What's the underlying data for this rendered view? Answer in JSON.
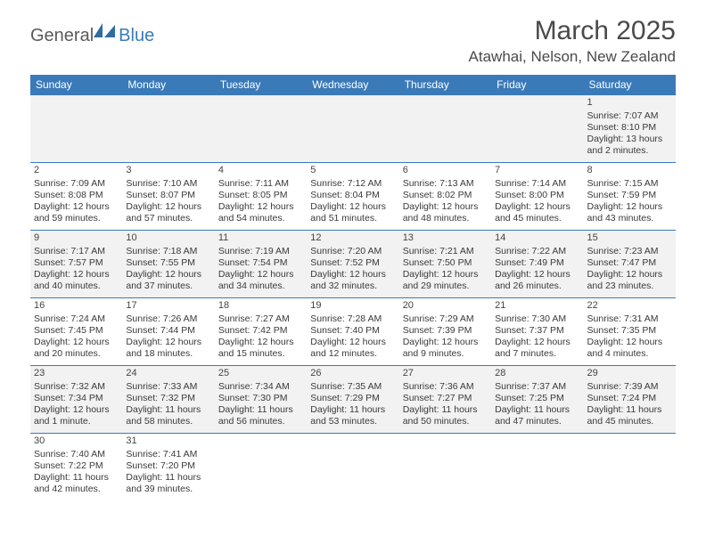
{
  "logo": {
    "part1": "General",
    "part2": "Blue"
  },
  "title": "March 2025",
  "location": "Atawhai, Nelson, New Zealand",
  "colors": {
    "header_bg": "#3a7ab8",
    "alt_row": "#f2f2f2",
    "text": "#3a3a3a",
    "title_text": "#4a4a4a"
  },
  "day_headers": [
    "Sunday",
    "Monday",
    "Tuesday",
    "Wednesday",
    "Thursday",
    "Friday",
    "Saturday"
  ],
  "weeks": [
    [
      null,
      null,
      null,
      null,
      null,
      null,
      {
        "n": "1",
        "sr": "Sunrise: 7:07 AM",
        "ss": "Sunset: 8:10 PM",
        "d1": "Daylight: 13 hours",
        "d2": "and 2 minutes."
      }
    ],
    [
      {
        "n": "2",
        "sr": "Sunrise: 7:09 AM",
        "ss": "Sunset: 8:08 PM",
        "d1": "Daylight: 12 hours",
        "d2": "and 59 minutes."
      },
      {
        "n": "3",
        "sr": "Sunrise: 7:10 AM",
        "ss": "Sunset: 8:07 PM",
        "d1": "Daylight: 12 hours",
        "d2": "and 57 minutes."
      },
      {
        "n": "4",
        "sr": "Sunrise: 7:11 AM",
        "ss": "Sunset: 8:05 PM",
        "d1": "Daylight: 12 hours",
        "d2": "and 54 minutes."
      },
      {
        "n": "5",
        "sr": "Sunrise: 7:12 AM",
        "ss": "Sunset: 8:04 PM",
        "d1": "Daylight: 12 hours",
        "d2": "and 51 minutes."
      },
      {
        "n": "6",
        "sr": "Sunrise: 7:13 AM",
        "ss": "Sunset: 8:02 PM",
        "d1": "Daylight: 12 hours",
        "d2": "and 48 minutes."
      },
      {
        "n": "7",
        "sr": "Sunrise: 7:14 AM",
        "ss": "Sunset: 8:00 PM",
        "d1": "Daylight: 12 hours",
        "d2": "and 45 minutes."
      },
      {
        "n": "8",
        "sr": "Sunrise: 7:15 AM",
        "ss": "Sunset: 7:59 PM",
        "d1": "Daylight: 12 hours",
        "d2": "and 43 minutes."
      }
    ],
    [
      {
        "n": "9",
        "sr": "Sunrise: 7:17 AM",
        "ss": "Sunset: 7:57 PM",
        "d1": "Daylight: 12 hours",
        "d2": "and 40 minutes."
      },
      {
        "n": "10",
        "sr": "Sunrise: 7:18 AM",
        "ss": "Sunset: 7:55 PM",
        "d1": "Daylight: 12 hours",
        "d2": "and 37 minutes."
      },
      {
        "n": "11",
        "sr": "Sunrise: 7:19 AM",
        "ss": "Sunset: 7:54 PM",
        "d1": "Daylight: 12 hours",
        "d2": "and 34 minutes."
      },
      {
        "n": "12",
        "sr": "Sunrise: 7:20 AM",
        "ss": "Sunset: 7:52 PM",
        "d1": "Daylight: 12 hours",
        "d2": "and 32 minutes."
      },
      {
        "n": "13",
        "sr": "Sunrise: 7:21 AM",
        "ss": "Sunset: 7:50 PM",
        "d1": "Daylight: 12 hours",
        "d2": "and 29 minutes."
      },
      {
        "n": "14",
        "sr": "Sunrise: 7:22 AM",
        "ss": "Sunset: 7:49 PM",
        "d1": "Daylight: 12 hours",
        "d2": "and 26 minutes."
      },
      {
        "n": "15",
        "sr": "Sunrise: 7:23 AM",
        "ss": "Sunset: 7:47 PM",
        "d1": "Daylight: 12 hours",
        "d2": "and 23 minutes."
      }
    ],
    [
      {
        "n": "16",
        "sr": "Sunrise: 7:24 AM",
        "ss": "Sunset: 7:45 PM",
        "d1": "Daylight: 12 hours",
        "d2": "and 20 minutes."
      },
      {
        "n": "17",
        "sr": "Sunrise: 7:26 AM",
        "ss": "Sunset: 7:44 PM",
        "d1": "Daylight: 12 hours",
        "d2": "and 18 minutes."
      },
      {
        "n": "18",
        "sr": "Sunrise: 7:27 AM",
        "ss": "Sunset: 7:42 PM",
        "d1": "Daylight: 12 hours",
        "d2": "and 15 minutes."
      },
      {
        "n": "19",
        "sr": "Sunrise: 7:28 AM",
        "ss": "Sunset: 7:40 PM",
        "d1": "Daylight: 12 hours",
        "d2": "and 12 minutes."
      },
      {
        "n": "20",
        "sr": "Sunrise: 7:29 AM",
        "ss": "Sunset: 7:39 PM",
        "d1": "Daylight: 12 hours",
        "d2": "and 9 minutes."
      },
      {
        "n": "21",
        "sr": "Sunrise: 7:30 AM",
        "ss": "Sunset: 7:37 PM",
        "d1": "Daylight: 12 hours",
        "d2": "and 7 minutes."
      },
      {
        "n": "22",
        "sr": "Sunrise: 7:31 AM",
        "ss": "Sunset: 7:35 PM",
        "d1": "Daylight: 12 hours",
        "d2": "and 4 minutes."
      }
    ],
    [
      {
        "n": "23",
        "sr": "Sunrise: 7:32 AM",
        "ss": "Sunset: 7:34 PM",
        "d1": "Daylight: 12 hours",
        "d2": "and 1 minute."
      },
      {
        "n": "24",
        "sr": "Sunrise: 7:33 AM",
        "ss": "Sunset: 7:32 PM",
        "d1": "Daylight: 11 hours",
        "d2": "and 58 minutes."
      },
      {
        "n": "25",
        "sr": "Sunrise: 7:34 AM",
        "ss": "Sunset: 7:30 PM",
        "d1": "Daylight: 11 hours",
        "d2": "and 56 minutes."
      },
      {
        "n": "26",
        "sr": "Sunrise: 7:35 AM",
        "ss": "Sunset: 7:29 PM",
        "d1": "Daylight: 11 hours",
        "d2": "and 53 minutes."
      },
      {
        "n": "27",
        "sr": "Sunrise: 7:36 AM",
        "ss": "Sunset: 7:27 PM",
        "d1": "Daylight: 11 hours",
        "d2": "and 50 minutes."
      },
      {
        "n": "28",
        "sr": "Sunrise: 7:37 AM",
        "ss": "Sunset: 7:25 PM",
        "d1": "Daylight: 11 hours",
        "d2": "and 47 minutes."
      },
      {
        "n": "29",
        "sr": "Sunrise: 7:39 AM",
        "ss": "Sunset: 7:24 PM",
        "d1": "Daylight: 11 hours",
        "d2": "and 45 minutes."
      }
    ],
    [
      {
        "n": "30",
        "sr": "Sunrise: 7:40 AM",
        "ss": "Sunset: 7:22 PM",
        "d1": "Daylight: 11 hours",
        "d2": "and 42 minutes."
      },
      {
        "n": "31",
        "sr": "Sunrise: 7:41 AM",
        "ss": "Sunset: 7:20 PM",
        "d1": "Daylight: 11 hours",
        "d2": "and 39 minutes."
      },
      null,
      null,
      null,
      null,
      null
    ]
  ]
}
